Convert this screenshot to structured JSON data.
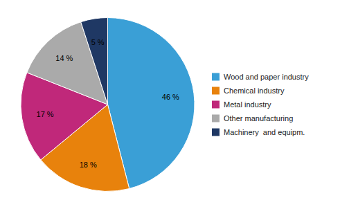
{
  "chart_data": {
    "type": "pie",
    "categories": [
      "Wood and paper industry",
      "Chemical industry",
      "Metal industry",
      "Other manufacturing",
      "Machinery  and equipm."
    ],
    "values": [
      46,
      18,
      17,
      14,
      5
    ],
    "value_labels": [
      "46 %",
      "18 %",
      "17 %",
      "14 %",
      "5 %"
    ],
    "colors": [
      "#3a9fd6",
      "#e8820c",
      "#c0287a",
      "#aaaaaa",
      "#1f3864"
    ],
    "data_labels": true,
    "legend": "right"
  }
}
